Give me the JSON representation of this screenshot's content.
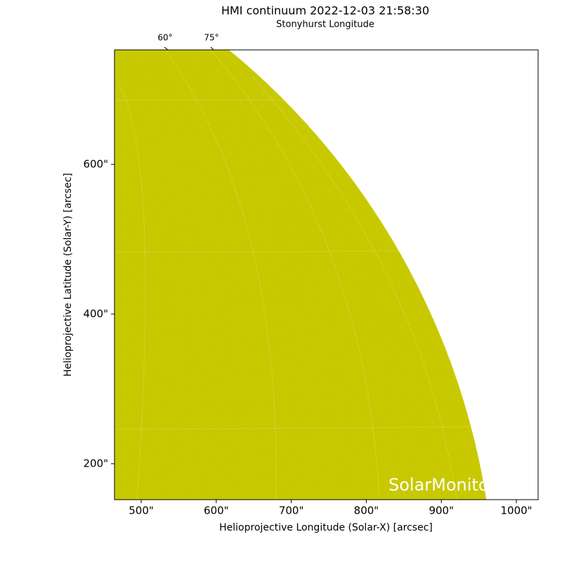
{
  "chart_data": {
    "type": "image",
    "title": "HMI continuum 2022-12-03 21:58:30",
    "top_axis_label": "Stonyhurst Longitude",
    "top_ticks": [
      {
        "value": 60,
        "label": "60°"
      },
      {
        "value": 75,
        "label": "75°"
      }
    ],
    "xlabel": "Helioprojective Longitude (Solar-X) [arcsec]",
    "ylabel": "Helioprojective Latitude (Solar-Y) [arcsec]",
    "xlim": [
      464.4,
      1029
    ],
    "ylim": [
      152,
      753
    ],
    "xticks": [
      {
        "value": 500,
        "label": "500\""
      },
      {
        "value": 600,
        "label": "600\""
      },
      {
        "value": 700,
        "label": "700\""
      },
      {
        "value": 800,
        "label": "800\""
      },
      {
        "value": 900,
        "label": "900\""
      },
      {
        "value": 1000,
        "label": "1000\""
      }
    ],
    "yticks": [
      {
        "value": 200,
        "label": "200\""
      },
      {
        "value": 400,
        "label": "400\""
      },
      {
        "value": 600,
        "label": "600\""
      }
    ],
    "color": "#c8c800",
    "watermark": "SolarMonitor"
  }
}
